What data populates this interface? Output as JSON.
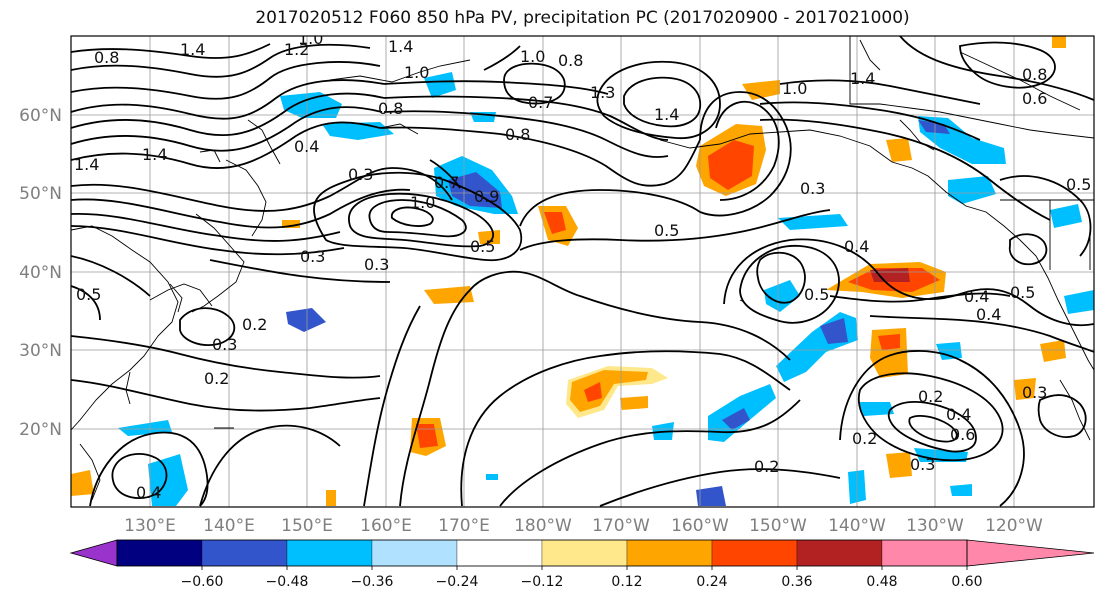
{
  "title": "2017020512 F060 850 hPa PV, precipitation PC (2017020900 - 2017021000)",
  "map": {
    "lat_labels": [
      "60°N",
      "50°N",
      "40°N",
      "30°N",
      "20°N"
    ],
    "lon_labels": [
      "130°E",
      "140°E",
      "150°E",
      "160°E",
      "170°E",
      "180°W",
      "170°W",
      "160°W",
      "150°W",
      "140°W",
      "130°W",
      "120°W"
    ],
    "pv_contour_labels": [
      "0.8",
      "1.4",
      "1.2",
      "1.0",
      "1.4",
      "1.0",
      "0.8",
      "1.0",
      "0.8",
      "0.7",
      "1.3",
      "0.8",
      "1.4",
      "1.0",
      "1.4",
      "0.8",
      "0.6",
      "1.4",
      "1.4",
      "0.4",
      "0.3",
      "0.7",
      "0.9",
      "1.0",
      "0.5",
      "0.3",
      "0.4",
      "0.3",
      "0.5",
      "0.3",
      "0.2",
      "0.3",
      "0.2",
      "0.4",
      "0.5",
      "0.4",
      "0.5",
      "0.3",
      "0.2",
      "0.4",
      "0.6",
      "0.3",
      "0.2",
      "0.2",
      "0.4",
      "0.5",
      "0.5"
    ]
  },
  "colorbar": {
    "tick_labels": [
      "−0.60",
      "−0.48",
      "−0.36",
      "−0.24",
      "−0.12",
      "0.12",
      "0.24",
      "0.36",
      "0.48",
      "0.60"
    ],
    "colors": [
      "#9933cc",
      "#000080",
      "#3355cc",
      "#00bfff",
      "#b0e2ff",
      "#ffffff",
      "#ffe88c",
      "#ffa500",
      "#ff4500",
      "#b22222",
      "#ff88aa"
    ]
  }
}
